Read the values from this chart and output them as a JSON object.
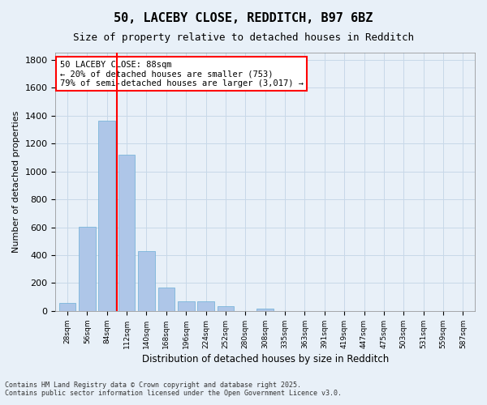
{
  "title1": "50, LACEBY CLOSE, REDDITCH, B97 6BZ",
  "title2": "Size of property relative to detached houses in Redditch",
  "xlabel": "Distribution of detached houses by size in Redditch",
  "ylabel": "Number of detached properties",
  "bar_values": [
    60,
    605,
    1365,
    1120,
    430,
    170,
    70,
    70,
    35,
    0,
    20,
    0,
    0,
    0,
    0,
    0,
    0,
    0,
    0,
    0,
    0
  ],
  "bar_labels": [
    "28sqm",
    "56sqm",
    "84sqm",
    "112sqm",
    "140sqm",
    "168sqm",
    "196sqm",
    "224sqm",
    "252sqm",
    "280sqm",
    "308sqm",
    "335sqm",
    "363sqm",
    "391sqm",
    "419sqm",
    "447sqm",
    "475sqm",
    "503sqm",
    "531sqm",
    "559sqm",
    "587sqm"
  ],
  "bar_color": "#aec6e8",
  "bar_edge_color": "#6baed6",
  "grid_color": "#c8d8e8",
  "background_color": "#e8f0f8",
  "vline_color": "red",
  "annotation_text": "50 LACEBY CLOSE: 88sqm\n← 20% of detached houses are smaller (753)\n79% of semi-detached houses are larger (3,017) →",
  "annotation_box_color": "white",
  "annotation_box_edge": "red",
  "ylim": [
    0,
    1850
  ],
  "yticks": [
    0,
    200,
    400,
    600,
    800,
    1000,
    1200,
    1400,
    1600,
    1800
  ],
  "footer1": "Contains HM Land Registry data © Crown copyright and database right 2025.",
  "footer2": "Contains public sector information licensed under the Open Government Licence v3.0."
}
